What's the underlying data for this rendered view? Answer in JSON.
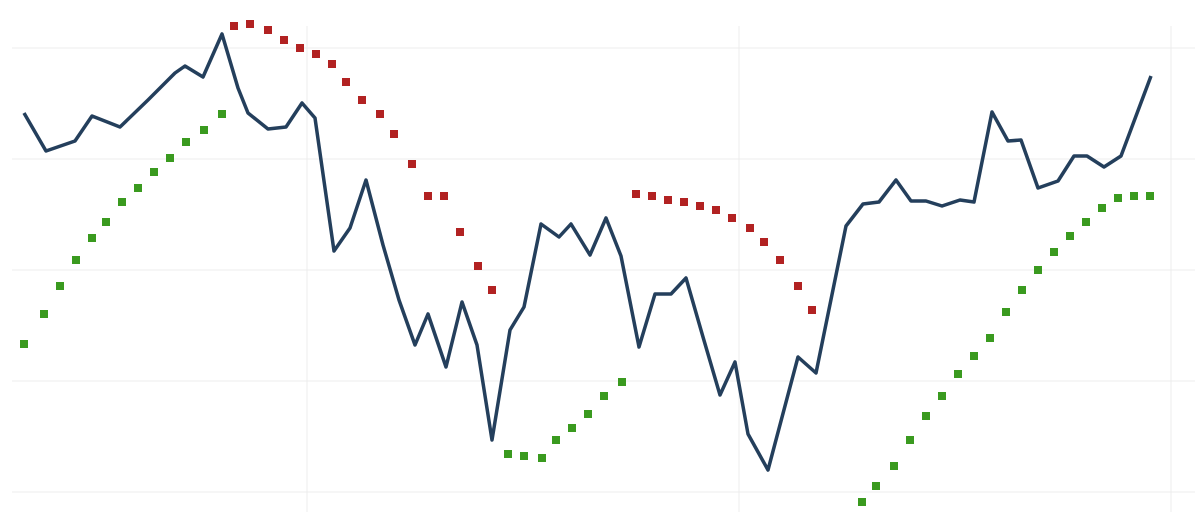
{
  "chart_data": {
    "type": "line",
    "xlim": [
      0,
      1200
    ],
    "xticks": [
      307,
      739,
      1171
    ],
    "ylim": [
      -20,
      492
    ],
    "yticks": [
      0,
      111,
      222,
      333,
      444
    ],
    "grid": true,
    "series": [
      {
        "type": "line",
        "color": "#243f5c",
        "x": [
          24,
          46,
          75,
          92,
          120,
          148,
          175,
          185,
          203,
          222,
          238,
          248,
          268,
          286,
          302,
          315,
          334,
          350,
          366,
          383,
          399,
          415,
          428,
          446,
          462,
          477,
          492,
          510,
          524,
          541,
          559,
          571,
          590,
          606,
          621,
          639,
          655,
          671,
          686,
          703,
          720,
          735,
          748,
          768,
          798,
          816,
          846,
          863,
          879,
          896,
          911,
          926,
          942,
          960,
          974,
          992,
          1008,
          1021,
          1038,
          1058,
          1074,
          1087,
          1104,
          1121,
          1151
        ],
        "values": [
          379,
          341,
          351,
          376,
          365,
          392,
          419,
          426,
          415,
          458,
          404,
          379,
          363,
          365,
          389,
          374,
          241,
          264,
          312,
          247,
          192,
          147,
          178,
          125,
          190,
          147,
          52,
          162,
          185,
          268,
          255,
          268,
          237,
          274,
          236,
          145,
          198,
          198,
          214,
          155,
          97,
          130,
          58,
          22,
          135,
          119,
          266,
          288,
          290,
          312,
          291,
          291,
          286,
          292,
          290,
          380,
          351,
          352,
          304,
          311,
          336,
          336,
          325,
          336,
          416
        ]
      },
      {
        "type": "scatter",
        "color": "#3a9a1f",
        "x": [
          24,
          44,
          60,
          76,
          92,
          106,
          122,
          138,
          154,
          170,
          186,
          204,
          222,
          508,
          524,
          542,
          556,
          572,
          588,
          604,
          622,
          862,
          876,
          894,
          910,
          926,
          942,
          958,
          974,
          990,
          1006,
          1022,
          1038,
          1054,
          1070,
          1086,
          1102,
          1118,
          1134,
          1150
        ],
        "values": [
          148,
          178,
          206,
          232,
          254,
          270,
          290,
          304,
          320,
          334,
          350,
          362,
          378,
          38,
          36,
          34,
          52,
          64,
          78,
          96,
          110,
          -10,
          6,
          26,
          52,
          76,
          96,
          118,
          136,
          154,
          180,
          202,
          222,
          240,
          256,
          270,
          284,
          294,
          296,
          296
        ]
      },
      {
        "type": "scatter",
        "color": "#b22222",
        "x": [
          234,
          250,
          268,
          284,
          300,
          316,
          332,
          346,
          362,
          380,
          394,
          412,
          428,
          444,
          460,
          478,
          492,
          636,
          652,
          668,
          684,
          700,
          716,
          732,
          750,
          764,
          780,
          798,
          812
        ],
        "values": [
          466,
          468,
          462,
          452,
          444,
          438,
          428,
          410,
          392,
          378,
          358,
          328,
          296,
          296,
          260,
          226,
          202,
          298,
          296,
          292,
          290,
          286,
          282,
          274,
          264,
          250,
          232,
          206,
          182
        ]
      }
    ]
  }
}
